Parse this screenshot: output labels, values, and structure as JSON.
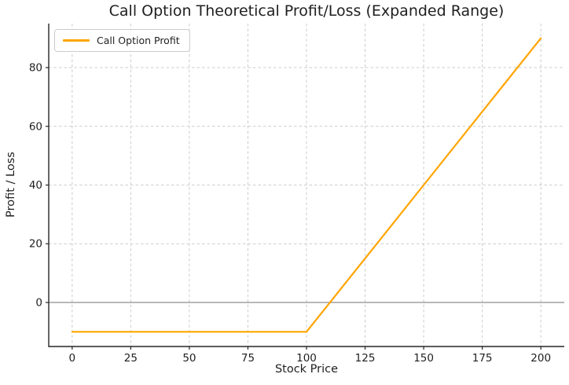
{
  "colors": {
    "background": "#ffffff",
    "accent_line": "#FFA500",
    "grid": "#cccccc",
    "zero_line": "#808080",
    "axis": "#262626",
    "text": "#1f1f1f",
    "legend_border": "#cccccc"
  },
  "chart_data": {
    "type": "line",
    "title": "Call Option Theoretical Profit/Loss (Expanded Range)",
    "xlabel": "Stock Price",
    "ylabel": "Profit / Loss",
    "xlim": [
      -10,
      210
    ],
    "ylim": [
      -15,
      95
    ],
    "xticks": [
      0,
      25,
      50,
      75,
      100,
      125,
      150,
      175,
      200
    ],
    "yticks": [
      0,
      20,
      40,
      60,
      80
    ],
    "grid": true,
    "grid_style": "dashed",
    "zero_line_y": 0,
    "legend_position": "upper-left",
    "series": [
      {
        "name": "Call Option Profit",
        "color": "#FFA500",
        "x": [
          0,
          25,
          50,
          75,
          100,
          125,
          150,
          175,
          200
        ],
        "y": [
          -10,
          -10,
          -10,
          -10,
          -10,
          15,
          40,
          65,
          90
        ]
      }
    ]
  }
}
